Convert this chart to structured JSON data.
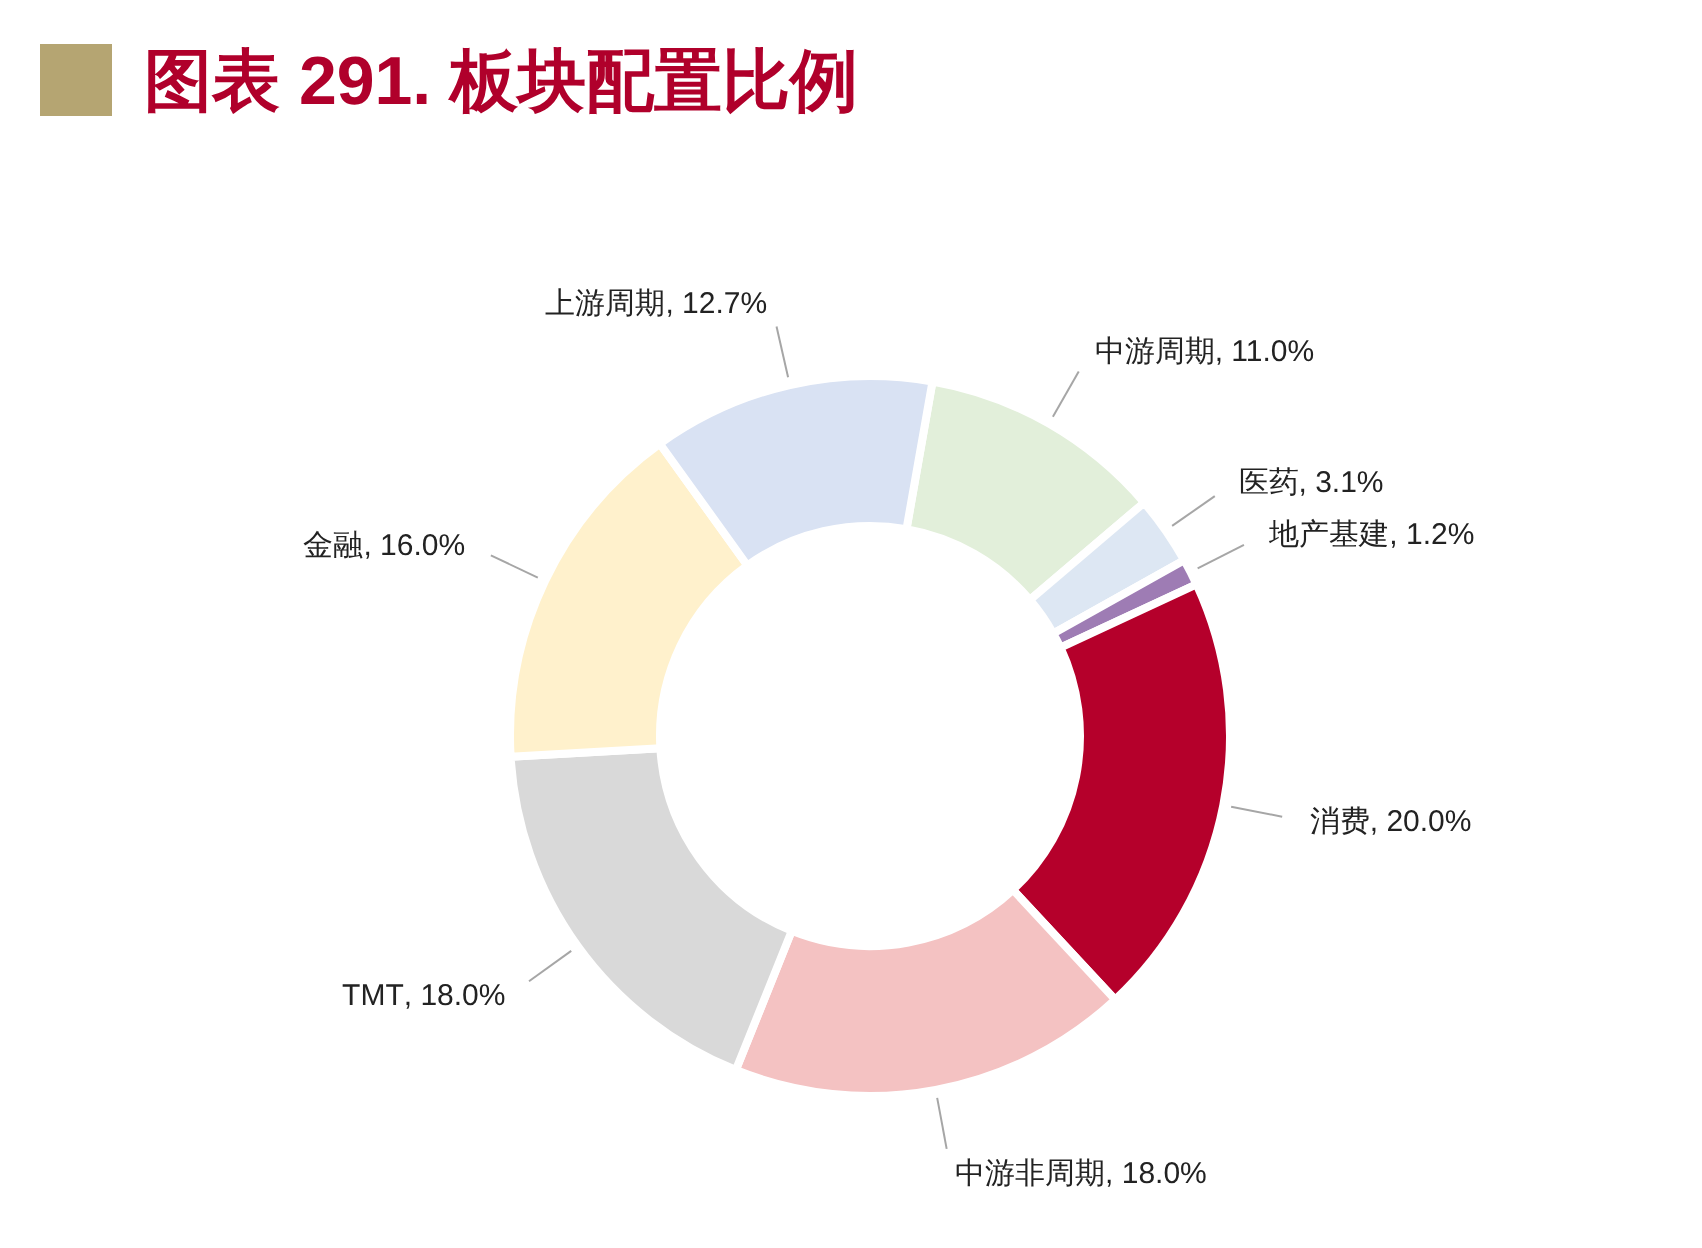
{
  "chart_data": {
    "type": "donut",
    "title": "图表 291. 板块配置比例",
    "categories": [
      "中游周期",
      "医药",
      "地产基建",
      "消费",
      "中游非周期",
      "TMT",
      "金融",
      "上游周期"
    ],
    "values": [
      11.0,
      3.1,
      1.2,
      20.0,
      18.0,
      18.0,
      16.0,
      12.7
    ],
    "colors": [
      "#e2efda",
      "#dde7f3",
      "#9e7cb4",
      "#b5002b",
      "#f4c2c2",
      "#d9d9d9",
      "#fff1cc",
      "#d9e2f3"
    ],
    "value_labels": [
      ", 11.0%",
      ", 3.1%",
      ", 1.2%",
      ", 20.0%",
      ", 18.0%",
      ", 18.0%",
      ", 16.0%",
      ", 12.7%"
    ]
  }
}
